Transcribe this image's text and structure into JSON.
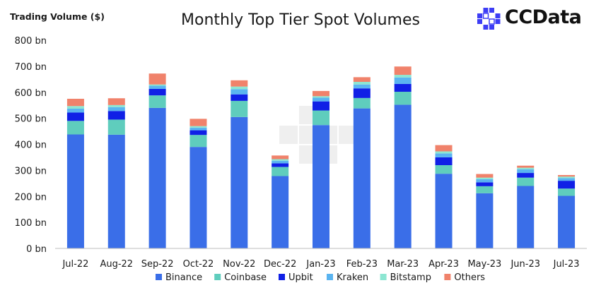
{
  "title": "Monthly Top Tier Spot Volumes",
  "brand": {
    "name": "CCData",
    "color": "#3d3df5"
  },
  "chart_data": {
    "type": "bar",
    "stacked": true,
    "title": "Monthly Top Tier Spot Volumes",
    "ylabel": "Trading Volume ($)",
    "xlabel": "",
    "ylim": [
      0,
      800
    ],
    "yticks": [
      0,
      100,
      200,
      300,
      400,
      500,
      600,
      700,
      800
    ],
    "ytick_labels": [
      "0 bn",
      "100 bn",
      "200 bn",
      "300 bn",
      "400 bn",
      "500 bn",
      "600 bn",
      "700 bn",
      "800 bn"
    ],
    "legend_position": "bottom",
    "categories": [
      "Jul-22",
      "Aug-22",
      "Sep-22",
      "Oct-22",
      "Nov-22",
      "Dec-22",
      "Jan-23",
      "Feb-23",
      "Mar-23",
      "Apr-23",
      "May-23",
      "Jun-23",
      "Jul-23"
    ],
    "series": [
      {
        "name": "Binance",
        "color": "#3a6ee8",
        "values": [
          438,
          437,
          540,
          390,
          505,
          278,
          474,
          538,
          552,
          287,
          212,
          240,
          202
        ]
      },
      {
        "name": "Coinbase",
        "color": "#5fcdbd",
        "values": [
          52,
          58,
          48,
          46,
          62,
          35,
          56,
          40,
          50,
          33,
          27,
          32,
          28
        ]
      },
      {
        "name": "Upbit",
        "color": "#1020e6",
        "values": [
          32,
          33,
          25,
          18,
          25,
          14,
          35,
          37,
          30,
          30,
          15,
          18,
          30
        ]
      },
      {
        "name": "Kraken",
        "color": "#5ab4f0",
        "values": [
          15,
          15,
          12,
          10,
          20,
          10,
          14,
          15,
          25,
          15,
          12,
          14,
          10
        ]
      },
      {
        "name": "Bitstamp",
        "color": "#8de6d2",
        "values": [
          10,
          8,
          5,
          6,
          10,
          6,
          6,
          10,
          10,
          8,
          6,
          6,
          6
        ]
      },
      {
        "name": "Others",
        "color": "#f0826b",
        "values": [
          28,
          26,
          42,
          28,
          24,
          14,
          20,
          18,
          32,
          24,
          14,
          8,
          6
        ]
      }
    ]
  }
}
